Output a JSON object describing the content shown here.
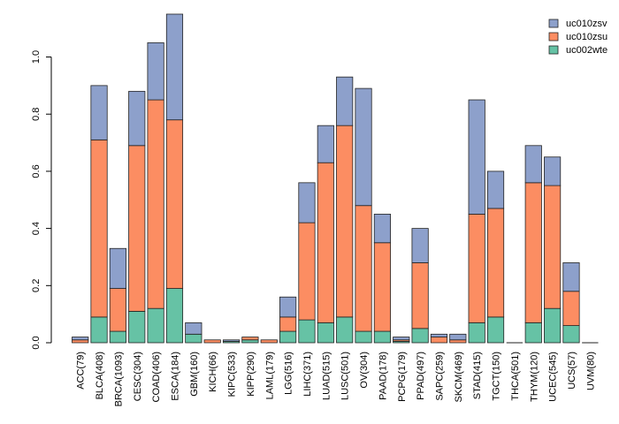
{
  "chart_data": {
    "type": "bar",
    "stacked": true,
    "title": "",
    "xlabel": "",
    "ylabel": "",
    "ylim": [
      0,
      1.15
    ],
    "yticks": [
      0.0,
      0.2,
      0.4,
      0.6,
      0.8,
      1.0
    ],
    "ytick_labels": [
      "0.0",
      "0.2",
      "0.4",
      "0.6",
      "0.8",
      "1.0"
    ],
    "grid": false,
    "legend_position": "top-right",
    "categories": [
      "ACC(79)",
      "BLCA(408)",
      "BRCA(1093)",
      "CESC(304)",
      "COAD(406)",
      "ESCA(184)",
      "GBM(160)",
      "KICH(66)",
      "KIPC(533)",
      "KIPP(290)",
      "LAML(179)",
      "LGG(516)",
      "LIHC(371)",
      "LUAD(515)",
      "LUSC(501)",
      "OV(304)",
      "PAAD(178)",
      "PCPG(179)",
      "PPAD(497)",
      "SAPC(259)",
      "SKCM(469)",
      "STAD(415)",
      "TGCT(150)",
      "THCA(501)",
      "THYM(120)",
      "UCEC(545)",
      "UCS(57)",
      "UVM(80)"
    ],
    "series": [
      {
        "name": "uc002wte",
        "color": "#66c2a5",
        "values": [
          0.0,
          0.09,
          0.04,
          0.11,
          0.12,
          0.19,
          0.03,
          0.0,
          0.005,
          0.01,
          0.0,
          0.04,
          0.08,
          0.07,
          0.09,
          0.04,
          0.04,
          0.005,
          0.05,
          0.0,
          0.0,
          0.07,
          0.09,
          0.0,
          0.07,
          0.12,
          0.06,
          0.0
        ]
      },
      {
        "name": "uc010zsu",
        "color": "#fc8d62",
        "values": [
          0.01,
          0.62,
          0.15,
          0.58,
          0.73,
          0.59,
          0.0,
          0.01,
          0.0,
          0.01,
          0.01,
          0.05,
          0.34,
          0.56,
          0.67,
          0.44,
          0.31,
          0.005,
          0.23,
          0.02,
          0.01,
          0.38,
          0.38,
          0.0,
          0.49,
          0.43,
          0.12,
          0.0
        ]
      },
      {
        "name": "uc010zsv",
        "color": "#8da0cb",
        "values": [
          0.01,
          0.19,
          0.14,
          0.19,
          0.2,
          0.37,
          0.04,
          0.0,
          0.005,
          0.0,
          0.0,
          0.07,
          0.14,
          0.13,
          0.17,
          0.41,
          0.1,
          0.01,
          0.12,
          0.01,
          0.02,
          0.4,
          0.13,
          0.0,
          0.13,
          0.1,
          0.1,
          0.0
        ]
      }
    ],
    "legend_entries": [
      "uc010zsv",
      "uc010zsu",
      "uc002wte"
    ]
  }
}
